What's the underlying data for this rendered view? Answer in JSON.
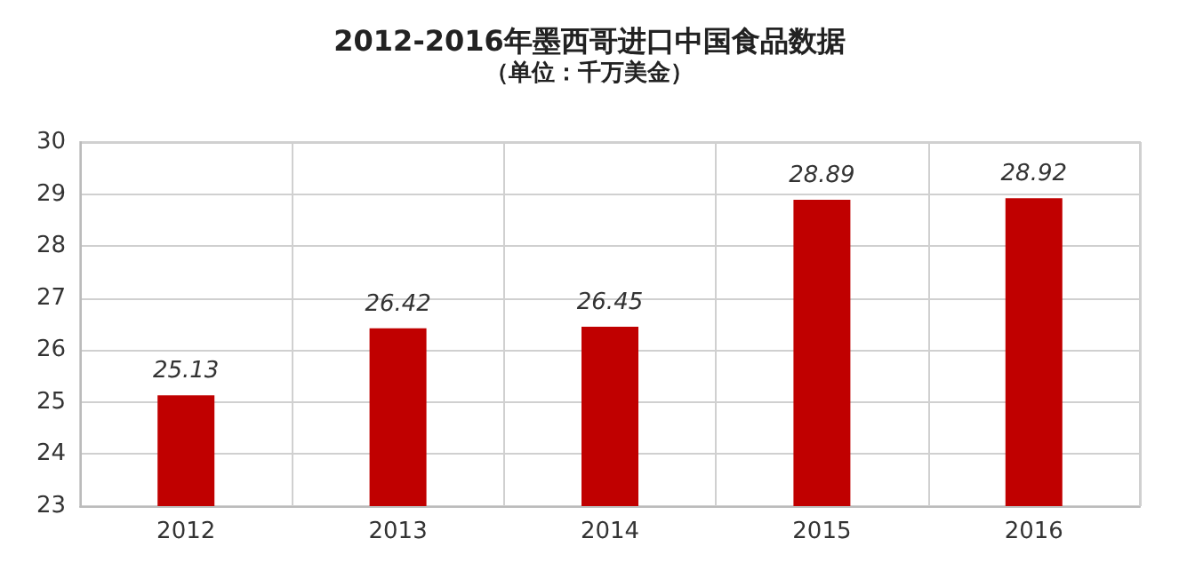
{
  "chart_data": {
    "type": "bar",
    "title": "2012-2016年墨西哥进口中国食品数据",
    "subtitle": "（单位：千万美金）",
    "categories": [
      "2012",
      "2013",
      "2014",
      "2015",
      "2016"
    ],
    "values": [
      25.13,
      26.42,
      26.45,
      28.89,
      28.92
    ],
    "color": "#c00000",
    "ylim": [
      23,
      30
    ],
    "yticks": [
      23,
      24,
      25,
      26,
      27,
      28,
      29,
      30
    ],
    "grid": true,
    "data_labels": true
  }
}
